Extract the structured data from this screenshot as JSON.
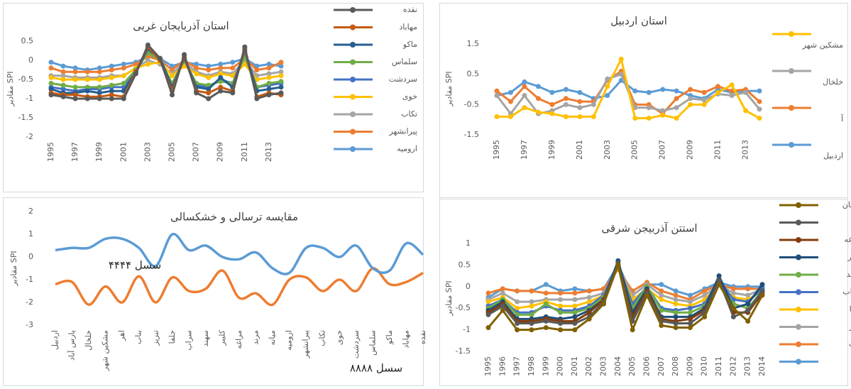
{
  "chart_data": [
    {
      "type": "line",
      "title": "استان آذربایجان غربی",
      "y_label": "مقادیر SPI",
      "legend": "right",
      "markers": true,
      "smooth": false,
      "grid": false,
      "categories": [
        "1995",
        null,
        "1997",
        null,
        "1999",
        null,
        "2001",
        null,
        "2003",
        null,
        "2005",
        null,
        "2007",
        null,
        "2009",
        null,
        "2011",
        null,
        "2013",
        null
      ],
      "ylim": [
        -2,
        0.5
      ],
      "yticks": [
        0.5,
        0,
        -0.5,
        -1,
        -1.5,
        -2
      ],
      "series": [
        {
          "name": "نقده",
          "color": "#595959",
          "values": [
            -0.9,
            -0.95,
            -1,
            -1,
            -1,
            -1,
            -1,
            -0.35,
            0.4,
            0.05,
            -0.9,
            0.15,
            -0.85,
            -1,
            -0.8,
            -0.85,
            0.35,
            -1,
            -0.9,
            -0.85
          ]
        },
        {
          "name": "مهاباد",
          "color": "#c55a11",
          "values": [
            -0.85,
            -0.9,
            -0.9,
            -0.95,
            -0.95,
            -0.9,
            -0.95,
            -0.3,
            0.35,
            0,
            -0.8,
            0.1,
            -0.8,
            -0.85,
            -0.7,
            -0.8,
            0.3,
            -0.95,
            -0.85,
            -0.9
          ]
        },
        {
          "name": "ماکو",
          "color": "#255e91",
          "values": [
            -0.75,
            -0.85,
            -0.85,
            -0.8,
            -0.85,
            -0.8,
            -0.8,
            -0.3,
            0.3,
            0.05,
            -0.7,
            0.05,
            -0.7,
            -0.75,
            -0.45,
            -0.7,
            0.25,
            -0.8,
            -0.75,
            -0.7
          ]
        },
        {
          "name": "سلماس",
          "color": "#70ad47",
          "values": [
            -0.6,
            -0.65,
            -0.7,
            -0.7,
            -0.7,
            -0.65,
            -0.6,
            -0.25,
            0.2,
            0,
            -0.6,
            0,
            -0.6,
            -0.65,
            -0.55,
            -0.6,
            0.1,
            -0.7,
            -0.6,
            -0.55
          ]
        },
        {
          "name": "سردشت",
          "color": "#4472c4",
          "values": [
            -0.7,
            -0.75,
            -0.8,
            -0.75,
            -0.75,
            -0.7,
            -0.7,
            -0.3,
            0.25,
            0.05,
            -0.65,
            0.05,
            -0.65,
            -0.7,
            -0.5,
            -0.6,
            0.2,
            -0.7,
            -0.65,
            -0.6
          ]
        },
        {
          "name": "خوی",
          "color": "#ffc000",
          "values": [
            -0.45,
            -0.5,
            -0.5,
            -0.5,
            -0.5,
            -0.45,
            -0.4,
            -0.2,
            -0.1,
            -0.05,
            -0.4,
            -0.15,
            -0.35,
            -0.45,
            -0.35,
            -0.4,
            -0.1,
            -0.5,
            -0.45,
            -0.4
          ]
        },
        {
          "name": "تکاب",
          "color": "#a5a5a5",
          "values": [
            -0.4,
            -0.4,
            -0.45,
            -0.45,
            -0.45,
            -0.4,
            -0.4,
            -0.2,
            0,
            -0.1,
            -0.35,
            -0.05,
            -0.3,
            -0.4,
            -0.3,
            -0.35,
            0,
            -0.4,
            -0.35,
            -0.3
          ]
        },
        {
          "name": "پیرانشهر",
          "color": "#ed7d31",
          "values": [
            -0.2,
            -0.3,
            -0.3,
            -0.3,
            -0.3,
            -0.25,
            -0.2,
            -0.1,
            0.1,
            0,
            -0.25,
            0,
            -0.2,
            -0.25,
            -0.2,
            -0.2,
            0.05,
            -0.25,
            -0.2,
            -0.05
          ]
        },
        {
          "name": "ارومیه",
          "color": "#5b9bd5",
          "values": [
            -0.05,
            -0.15,
            -0.2,
            -0.25,
            -0.2,
            -0.15,
            -0.1,
            -0.05,
            0.1,
            0.05,
            -0.15,
            -0.05,
            -0.1,
            -0.15,
            -0.1,
            -0.05,
            0.05,
            -0.15,
            -0.1,
            -0.15
          ]
        }
      ]
    },
    {
      "type": "line",
      "title": "استان اردبیل",
      "y_label": "مقادیر SPI",
      "legend": "right",
      "markers": true,
      "smooth": false,
      "grid": false,
      "categories": [
        "1995",
        null,
        "1997",
        null,
        "1999",
        null,
        "2001",
        null,
        "2003",
        null,
        "2005",
        null,
        "2007",
        null,
        "2009",
        null,
        "2011",
        null,
        "2013",
        null
      ],
      "ylim": [
        -1.5,
        1.5
      ],
      "yticks": [
        1.5,
        0.5,
        -0.5,
        -1.5
      ],
      "series": [
        {
          "name": "مشکین شهر",
          "color": "#ffc000",
          "values": [
            -0.9,
            -0.9,
            -0.6,
            -0.75,
            -0.8,
            -0.9,
            -0.9,
            -0.9,
            0.1,
            1.0,
            -0.95,
            -0.95,
            -0.85,
            -0.95,
            -0.5,
            -0.5,
            -0.1,
            0.15,
            -0.7,
            -0.95
          ]
        },
        {
          "name": "خلخال",
          "color": "#a5a5a5",
          "values": [
            -0.2,
            -0.8,
            -0.2,
            -0.8,
            -0.7,
            -0.5,
            -0.6,
            -0.5,
            0.35,
            0.5,
            -0.6,
            -0.6,
            -0.7,
            -0.6,
            -0.3,
            -0.35,
            -0.15,
            -0.2,
            -0.1,
            -0.65
          ]
        },
        {
          "name": "آ",
          "color": "#ed7d31",
          "values": [
            -0.05,
            -0.4,
            0.1,
            -0.3,
            -0.5,
            -0.3,
            -0.4,
            -0.4,
            0.3,
            0.6,
            -0.5,
            -0.5,
            -0.8,
            -0.3,
            0,
            -0.1,
            0.1,
            -0.05,
            0,
            -0.4
          ]
        },
        {
          "name": "اردبیل",
          "color": "#5b9bd5",
          "values": [
            -0.2,
            -0.1,
            0.25,
            0.1,
            -0.1,
            0,
            -0.1,
            -0.3,
            -0.2,
            0.3,
            -0.05,
            -0.1,
            0,
            -0.05,
            -0.2,
            -0.3,
            0,
            -0.1,
            -0.05,
            -0.05
          ]
        }
      ]
    },
    {
      "type": "line",
      "title": "مقایسه ترسالی و خشکسالی",
      "y_label": "مقادیر SPI",
      "markers": false,
      "smooth": true,
      "grid": false,
      "categories": [
        "اردبیل",
        "پارس آباد",
        "خلخال",
        "مشکین شهر",
        "اهر",
        "بناب",
        "تبریز",
        "جلفا",
        "سراب",
        "سهند",
        "کلیبر",
        "مراغه",
        "مرند",
        "میانه",
        "ارومیه",
        "پیرانشهر",
        "تکاب",
        "خوی",
        "سردشت",
        "سلماس",
        "ماکو",
        "مهاباد",
        "نقده"
      ],
      "ylim": [
        -3,
        2
      ],
      "yticks": [
        2,
        1,
        0,
        -1,
        -2,
        -3
      ],
      "series": [
        {
          "name": "سسل ۴۴۴۴",
          "color": "#5b9bd5",
          "values": [
            0.3,
            0.4,
            0.4,
            0.8,
            0.8,
            0.4,
            -0.4,
            1.0,
            0.3,
            0.5,
            0,
            -0.1,
            0.2,
            -0.5,
            -0.7,
            0.4,
            0.4,
            0,
            0.5,
            -0.5,
            -0.6,
            0.6,
            0.1
          ]
        },
        {
          "name": "سسل ۸۸۸۸",
          "color": "#ed7d31",
          "values": [
            -1.2,
            -1.1,
            -2.1,
            -1.3,
            -2.0,
            -0.85,
            -2.0,
            -0.9,
            -1.5,
            -1.4,
            -0.6,
            -1.8,
            -1.6,
            -2.1,
            -1.0,
            -0.9,
            -1.5,
            -1.0,
            -1.5,
            -0.5,
            -1.2,
            -1.1,
            -0.7
          ]
        }
      ]
    },
    {
      "type": "line",
      "title": "استتن آذربیجن شرقی",
      "y_label": "مقادیر SPI",
      "legend": "right",
      "markers": true,
      "smooth": false,
      "grid": false,
      "categories": [
        "1995",
        "1996",
        "1997",
        "1998",
        "1999",
        "2000",
        "2001",
        "2002",
        "2003",
        "2004",
        "2005",
        "2006",
        "2007",
        "2008",
        "2009",
        "2010",
        "2011",
        "2012",
        "2013",
        "2014"
      ],
      "ylim": [
        -1.5,
        1
      ],
      "yticks": [
        1,
        0.5,
        0,
        -0.5,
        -1,
        -1.5
      ],
      "series": [
        {
          "name": "ممقان",
          "color": "#7f6000",
          "values": [
            -0.95,
            -0.55,
            -1,
            -1,
            -0.95,
            -1,
            -1,
            -0.75,
            -0.4,
            0.5,
            -1,
            -0.2,
            -0.9,
            -0.95,
            -0.95,
            -0.7,
            0.05,
            -0.5,
            -0.8,
            -0.2
          ]
        },
        {
          "name": "ورد",
          "color": "#595959",
          "values": [
            -0.65,
            -0.45,
            -0.85,
            -0.85,
            -0.8,
            -0.85,
            -0.85,
            -0.7,
            -0.35,
            0.55,
            -0.8,
            -0.15,
            -0.8,
            -0.85,
            -0.85,
            -0.6,
            0.15,
            -0.7,
            -0.55,
            -0.1
          ]
        },
        {
          "name": "مراغه",
          "color": "#843c0c",
          "values": [
            -0.6,
            -0.4,
            -0.8,
            -0.8,
            -0.75,
            -0.8,
            -0.8,
            -0.6,
            -0.3,
            0.5,
            -0.7,
            -0.1,
            -0.75,
            -0.8,
            -0.75,
            -0.55,
            0.1,
            -0.6,
            -0.6,
            -0.15
          ]
        },
        {
          "name": "کلیبر",
          "color": "#1f4e79",
          "values": [
            -0.55,
            -0.35,
            -0.75,
            -0.75,
            -0.7,
            -0.75,
            -0.7,
            -0.55,
            -0.3,
            0.6,
            -0.6,
            -0.05,
            -0.7,
            -0.7,
            -0.7,
            -0.5,
            0.25,
            -0.5,
            -0.4,
            0.05
          ]
        },
        {
          "name": "سهند",
          "color": "#70ad47",
          "values": [
            -0.5,
            -0.3,
            -0.65,
            -0.65,
            -0.4,
            -0.6,
            -0.6,
            -0.5,
            -0.25,
            0.5,
            -0.5,
            0,
            -0.55,
            -0.6,
            -0.6,
            -0.45,
            0.1,
            -0.4,
            -0.5,
            -0.1
          ]
        },
        {
          "name": "سراب",
          "color": "#4472c4",
          "values": [
            -0.45,
            -0.3,
            -0.6,
            -0.6,
            -0.45,
            -0.55,
            -0.55,
            -0.45,
            -0.2,
            0.5,
            -0.4,
            0,
            -0.5,
            -0.55,
            -0.5,
            -0.4,
            0.15,
            -0.3,
            -0.35,
            -0.05
          ]
        },
        {
          "name": "جلفا",
          "color": "#ffc000",
          "values": [
            -0.35,
            -0.25,
            -0.5,
            -0.45,
            -0.35,
            -0.45,
            -0.45,
            -0.35,
            -0.2,
            0.45,
            -0.3,
            -0.05,
            -0.3,
            -0.4,
            -0.45,
            -0.3,
            0.05,
            -0.25,
            -0.3,
            -0.1
          ]
        },
        {
          "name": "تورز",
          "color": "#a5a5a5",
          "values": [
            -0.3,
            -0.15,
            -0.35,
            -0.35,
            -0.3,
            -0.3,
            -0.3,
            -0.25,
            -0.15,
            0.45,
            -0.2,
            0.05,
            -0.2,
            -0.3,
            -0.35,
            -0.2,
            0.05,
            -0.15,
            -0.2,
            -0.05
          ]
        },
        {
          "name": "بناب",
          "color": "#ed7d31",
          "values": [
            -0.15,
            -0.05,
            -0.1,
            -0.1,
            -0.15,
            -0.15,
            -0.15,
            -0.1,
            -0.05,
            0.4,
            -0.1,
            0.1,
            -0.1,
            -0.2,
            -0.3,
            -0.1,
            0.05,
            -0.05,
            -0.05,
            -0.05
          ]
        },
        {
          "name": "اهر",
          "color": "#5b9bd5",
          "values": [
            -0.25,
            -0.05,
            -0.1,
            -0.1,
            0.05,
            -0.1,
            -0.05,
            -0.1,
            -0.05,
            0.5,
            -0.2,
            0.05,
            0.05,
            -0.1,
            -0.2,
            -0.05,
            0.1,
            0,
            0,
            0
          ]
        }
      ]
    }
  ]
}
